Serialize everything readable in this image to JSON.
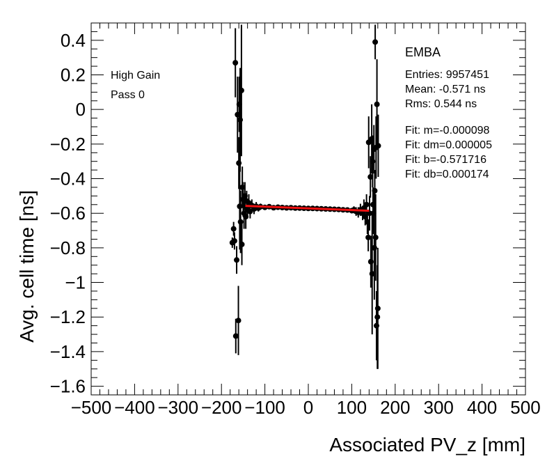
{
  "chart_data": {
    "type": "scatter",
    "xlabel": "Associated PV_z [mm]",
    "ylabel": "Avg. cell time [ns]",
    "xlim": [
      -500,
      500
    ],
    "ylim": [
      -1.65,
      0.5
    ],
    "xticks": [
      -500,
      -400,
      -300,
      -200,
      -100,
      0,
      100,
      200,
      300,
      400,
      500
    ],
    "xtick_labels": [
      "−500",
      "−400",
      "−300",
      "−200",
      "−100",
      "0",
      "100",
      "200",
      "300",
      "400",
      "500"
    ],
    "yticks": [
      0.4,
      0.2,
      0,
      -0.2,
      -0.4,
      -0.6,
      -0.8,
      -1,
      -1.2,
      -1.4,
      -1.6
    ],
    "ytick_labels": [
      "0.4",
      "0.2",
      "0",
      "−0.2",
      "−0.4",
      "−0.6",
      "−0.8",
      "−1",
      "−1.2",
      "−1.4",
      "−1.6"
    ],
    "grid": false,
    "stat_box": {
      "title": "EMBA",
      "entries": "Entries: 9957451",
      "mean": "Mean: -0.571 ns",
      "rms": "Rms: 0.544 ns"
    },
    "fit_box": {
      "m": "Fit: m=-0.000098",
      "dm": "Fit: dm=0.000005",
      "b": "Fit: b=-0.571716",
      "db": "Fit: db=0.000174"
    },
    "labels": {
      "gain": "High Gain",
      "pass": "Pass 0"
    },
    "fit_line": {
      "x": [
        -145,
        140
      ],
      "color": "#ee1111"
    },
    "points": [
      [
        -175,
        -0.77,
        0.03
      ],
      [
        -170,
        -0.76,
        0.05
      ],
      [
        -172,
        -0.69,
        0.04
      ],
      [
        -168,
        0.27,
        0.2
      ],
      [
        -167,
        -1.31,
        0.1
      ],
      [
        -165,
        -0.87,
        0.08
      ],
      [
        -163,
        -0.03,
        0.22
      ],
      [
        -161,
        -1.22,
        0.2
      ],
      [
        -160,
        -0.31,
        0.15
      ],
      [
        -159,
        0.03,
        0.16
      ],
      [
        -158,
        -0.56,
        0.25
      ],
      [
        -157,
        -0.06,
        0.3
      ],
      [
        -156,
        -0.65,
        0.18
      ],
      [
        -154,
        0.11,
        0.38
      ],
      [
        -153,
        -0.78,
        0.12
      ],
      [
        -152,
        -0.45,
        0.12
      ],
      [
        -150,
        -0.52,
        0.1
      ],
      [
        -148,
        -0.6,
        0.09
      ],
      [
        -146,
        -0.5,
        0.08
      ],
      [
        -144,
        -0.62,
        0.07
      ],
      [
        -142,
        -0.53,
        0.06
      ],
      [
        -140,
        -0.58,
        0.05
      ],
      [
        -137,
        -0.54,
        0.05
      ],
      [
        -134,
        -0.59,
        0.04
      ],
      [
        -130,
        -0.555,
        0.035
      ],
      [
        -125,
        -0.575,
        0.03
      ],
      [
        -120,
        -0.56,
        0.025
      ],
      [
        -115,
        -0.57,
        0.02
      ],
      [
        -110,
        -0.562,
        0.018
      ],
      [
        -100,
        -0.566,
        0.012
      ],
      [
        -90,
        -0.562,
        0.01
      ],
      [
        -80,
        -0.568,
        0.008
      ],
      [
        -70,
        -0.565,
        0.007
      ],
      [
        -60,
        -0.567,
        0.006
      ],
      [
        -50,
        -0.569,
        0.006
      ],
      [
        -40,
        -0.568,
        0.005
      ],
      [
        -30,
        -0.57,
        0.005
      ],
      [
        -20,
        -0.57,
        0.005
      ],
      [
        -10,
        -0.571,
        0.005
      ],
      [
        0,
        -0.572,
        0.005
      ],
      [
        10,
        -0.572,
        0.005
      ],
      [
        20,
        -0.573,
        0.005
      ],
      [
        30,
        -0.574,
        0.005
      ],
      [
        40,
        -0.575,
        0.006
      ],
      [
        50,
        -0.576,
        0.006
      ],
      [
        60,
        -0.577,
        0.007
      ],
      [
        70,
        -0.578,
        0.008
      ],
      [
        80,
        -0.58,
        0.01
      ],
      [
        90,
        -0.581,
        0.012
      ],
      [
        100,
        -0.585,
        0.016
      ],
      [
        105,
        -0.58,
        0.02
      ],
      [
        110,
        -0.59,
        0.025
      ],
      [
        115,
        -0.595,
        0.03
      ],
      [
        120,
        -0.58,
        0.035
      ],
      [
        125,
        -0.6,
        0.04
      ],
      [
        128,
        -0.57,
        0.05
      ],
      [
        131,
        -0.62,
        0.05
      ],
      [
        134,
        -0.55,
        0.06
      ],
      [
        136,
        -0.65,
        0.07
      ],
      [
        138,
        -0.74,
        0.08
      ],
      [
        139,
        -0.19,
        0.15
      ],
      [
        141,
        -0.6,
        0.1
      ],
      [
        143,
        -0.39,
        0.12
      ],
      [
        144,
        -0.88,
        0.15
      ],
      [
        146,
        -0.17,
        0.2
      ],
      [
        147,
        -0.95,
        0.35
      ],
      [
        148,
        -0.3,
        0.15
      ],
      [
        149,
        -0.55,
        0.1
      ],
      [
        150,
        -0.6,
        0.12
      ],
      [
        151,
        -0.23,
        0.14
      ],
      [
        152,
        -0.8,
        0.3
      ],
      [
        153,
        -0.47,
        0.12
      ],
      [
        154,
        0.39,
        0.1
      ],
      [
        155,
        -0.74,
        0.25
      ],
      [
        156,
        -0.22,
        0.18
      ],
      [
        157,
        -1.25,
        0.2
      ],
      [
        158,
        0.03,
        0.26
      ],
      [
        159,
        -1.2,
        0.3
      ],
      [
        160,
        -1.15,
        0.35
      ],
      [
        161,
        -0.21,
        0.18
      ]
    ]
  }
}
